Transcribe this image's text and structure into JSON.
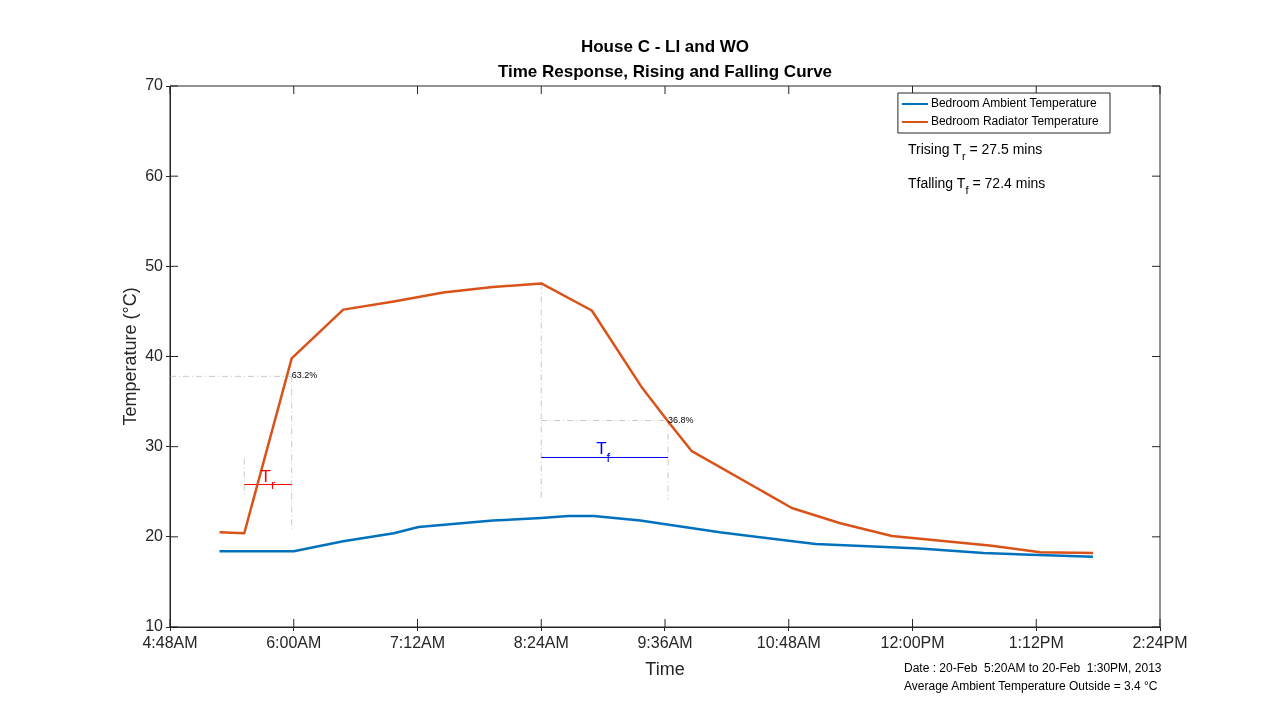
{
  "chart_data": {
    "type": "line",
    "title": "House C - LI and WO",
    "subtitle": "Time Response, Rising and Falling Curve",
    "xlabel": "Time",
    "ylabel": "Temperature (°C)",
    "xlim": [
      4.8,
      14.4
    ],
    "xticks": [
      {
        "value": 4.8,
        "label": "4:48AM"
      },
      {
        "value": 6,
        "label": "6:00AM"
      },
      {
        "value": 7.2,
        "label": "7:12AM"
      },
      {
        "value": 8.4,
        "label": "8:24AM"
      },
      {
        "value": 9.6,
        "label": "9:36AM"
      },
      {
        "value": 10.8,
        "label": "10:48AM"
      },
      {
        "value": 12,
        "label": "12:00PM"
      },
      {
        "value": 13.2,
        "label": "1:12PM"
      },
      {
        "value": 14.4,
        "label": "2:24PM"
      }
    ],
    "ylim": [
      10,
      70
    ],
    "yticks": [
      10,
      20,
      30,
      40,
      50,
      60,
      70
    ],
    "grid": false,
    "legend": "top right",
    "series": [
      {
        "name": "Bedroom Ambient Temperature",
        "color": "#0072bd",
        "x": [
          5.28,
          6.0,
          6.48,
          6.97,
          7.21,
          7.93,
          8.4,
          8.66,
          8.91,
          9.36,
          10.13,
          11.06,
          12.07,
          12.69,
          13.75
        ],
        "values": [
          18.4,
          18.4,
          19.5,
          20.4,
          21.1,
          21.8,
          22.1,
          22.3,
          22.3,
          21.8,
          20.5,
          19.2,
          18.7,
          18.2,
          17.8
        ]
      },
      {
        "name": "Bedroom Radiator Temperature",
        "color": "#d95319",
        "x": [
          5.28,
          5.52,
          5.98,
          6.48,
          6.97,
          7.45,
          7.93,
          8.4,
          8.89,
          9.38,
          9.63,
          9.86,
          10.83,
          11.3,
          11.8,
          12.77,
          13.24,
          13.75
        ],
        "values": [
          20.5,
          20.4,
          39.8,
          45.2,
          46.1,
          47.1,
          47.7,
          48.1,
          45.1,
          36.5,
          32.8,
          29.5,
          23.2,
          21.5,
          20.1,
          19.0,
          18.3,
          18.2
        ]
      },
      {
        "color": "#ff0000",
        "x": [
          5.52,
          5.98
        ],
        "values": [
          25.8,
          25.8
        ]
      },
      {
        "color": "#0000ff",
        "x": [
          8.4,
          9.63
        ],
        "values": [
          28.8,
          28.8
        ]
      },
      {
        "color": "#c8c8c8",
        "line_style": "dashed",
        "x": [
          4.8,
          5.98
        ],
        "values": [
          37.8,
          37.8
        ]
      },
      {
        "color": "#c8c8c8",
        "line_style": "dashed",
        "x": [
          5.98,
          5.98
        ],
        "values": [
          37.8,
          20.8
        ]
      },
      {
        "color": "#c8c8c8",
        "line_style": "dashed",
        "x": [
          5.52,
          5.52
        ],
        "values": [
          28.7,
          24.4
        ]
      },
      {
        "color": "#c8c8c8",
        "line_style": "dashed",
        "x": [
          8.4,
          8.4
        ],
        "values": [
          48.1,
          24.1
        ]
      },
      {
        "color": "#c8c8c8",
        "line_style": "dashed",
        "x": [
          8.4,
          9.63
        ],
        "values": [
          32.9,
          32.9
        ]
      },
      {
        "color": "#c8c8c8",
        "line_style": "dashed",
        "x": [
          9.63,
          9.63
        ],
        "values": [
          32.9,
          24.1
        ]
      }
    ],
    "annotations": [
      "Trising T$_{r}$ = 27.5 mins",
      "Tfalling T$_{f}$ = 72.4 mins",
      "Date : 20-Feb  5:20AM to 20-Feb  1:30PM, 2013",
      "Average Ambient Temperature Outside = 3.4 °C",
      {
        "text": "63.2%",
        "x": 5.98,
        "y": 37.8
      },
      {
        "text": "36.8%",
        "x": 9.63,
        "y": 32.9
      },
      {
        "text": "T$_{r}$",
        "x": 5.75,
        "y": 25.8
      },
      {
        "text": "T$_{f}$",
        "x": 9.0,
        "y": 28.8
      }
    ]
  }
}
